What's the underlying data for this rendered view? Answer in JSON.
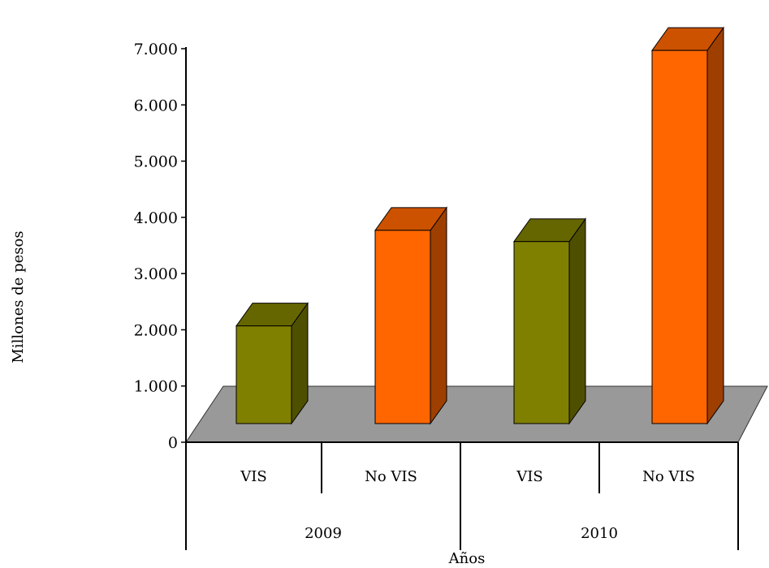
{
  "chart_data": {
    "type": "bar",
    "title": "",
    "xlabel": "Años",
    "ylabel": "Millones de pesos",
    "ylim": [
      0,
      7000
    ],
    "yticks": [
      0,
      1000,
      2000,
      3000,
      4000,
      5000,
      6000,
      7000
    ],
    "ytick_labels": [
      "0",
      "1.000",
      "2.000",
      "3.000",
      "4.000",
      "5.000",
      "6.000",
      "7.000"
    ],
    "groups": [
      {
        "label": "2009",
        "categories": [
          "VIS",
          "No VIS"
        ]
      },
      {
        "label": "2010",
        "categories": [
          "VIS",
          "No VIS"
        ]
      }
    ],
    "bars": [
      {
        "group": "2009",
        "category": "VIS",
        "value": 2300,
        "color": "#808000"
      },
      {
        "group": "2009",
        "category": "No VIS",
        "value": 4000,
        "color": "#FF6600"
      },
      {
        "group": "2010",
        "category": "VIS",
        "value": 3800,
        "color": "#808000"
      },
      {
        "group": "2010",
        "category": "No VIS",
        "value": 7200,
        "color": "#FF6600"
      }
    ],
    "grid": false,
    "legend": "none",
    "floor_color": "#999999"
  }
}
